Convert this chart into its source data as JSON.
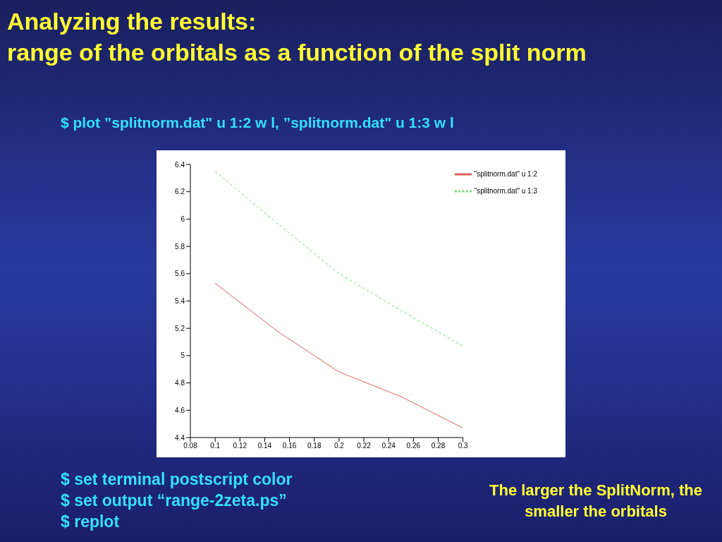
{
  "chart_data": {
    "type": "line",
    "title": "Analyzing the results:",
    "subtitle": "range of the orbitals as a function of the split norm",
    "x": [
      0.1,
      0.15,
      0.2,
      0.25,
      0.3
    ],
    "series": [
      {
        "name": "\"splitnorm.dat\" u 1:2",
        "color": "#e06060",
        "values": [
          5.53,
          5.18,
          4.88,
          4.7,
          4.47
        ],
        "line_style": "solid"
      },
      {
        "name": "\"splitnorm.dat\" u 1:3",
        "color": "#80e080",
        "values": [
          6.35,
          5.97,
          5.6,
          5.33,
          5.07
        ],
        "line_style": "dashed"
      }
    ],
    "xlim": [
      0.08,
      0.3
    ],
    "xticks": [
      0.08,
      0.1,
      0.12,
      0.14,
      0.16,
      0.18,
      0.2,
      0.22,
      0.24,
      0.26,
      0.28,
      0.3
    ],
    "ylim": [
      4.4,
      6.4
    ],
    "yticks": [
      4.4,
      4.6,
      4.8,
      5,
      5.2,
      5.4,
      5.6,
      5.8,
      6,
      6.2,
      6.4
    ],
    "grid": false,
    "legend": "top right",
    "marker": "none",
    "annotations": [
      "$ plot ”splitnorm.dat\" u 1:2 w l, ”splitnorm.dat\" u 1:3 w l",
      "$ set terminal postscript color",
      "$ set output “range-2zeta.ps”",
      "$ replot",
      "The larger the SplitNorm, the smaller the orbitals"
    ]
  }
}
